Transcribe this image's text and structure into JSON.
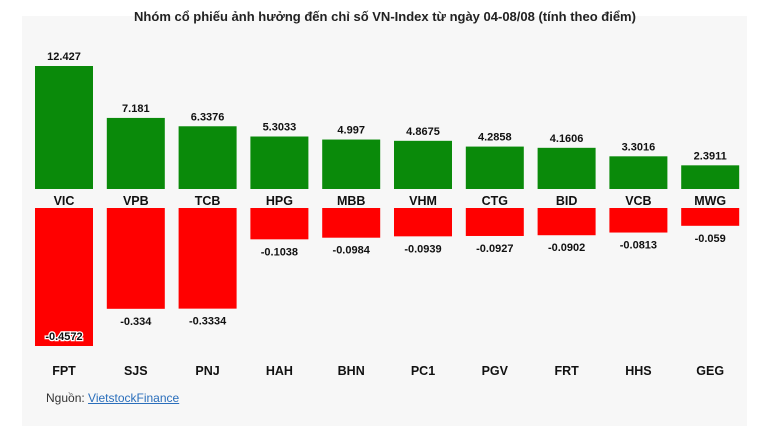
{
  "chart_data": {
    "type": "bar",
    "title": "Nhóm cổ phiếu ảnh hưởng đến chỉ số VN-Index từ ngày 04-08/08 (tính theo điểm)",
    "xlabel": "",
    "ylabel": "",
    "positive": {
      "categories": [
        "VIC",
        "VPB",
        "TCB",
        "HPG",
        "MBB",
        "VHM",
        "CTG",
        "BID",
        "VCB",
        "MWG"
      ],
      "values": [
        12.427,
        7.181,
        6.3376,
        5.3033,
        4.997,
        4.8675,
        4.2858,
        4.1606,
        3.3016,
        2.3911
      ],
      "labels": [
        "12.427",
        "7.181",
        "6.3376",
        "5.3033",
        "4.997",
        "4.8675",
        "4.2858",
        "4.1606",
        "3.3016",
        "2.3911"
      ],
      "color": "#0a8a0a"
    },
    "negative": {
      "categories": [
        "FPT",
        "SJS",
        "PNJ",
        "HAH",
        "BHN",
        "PC1",
        "PGV",
        "FRT",
        "HHS",
        "GEG"
      ],
      "values": [
        -0.4572,
        -0.334,
        -0.3334,
        -0.1038,
        -0.0984,
        -0.0939,
        -0.0927,
        -0.0902,
        -0.0813,
        -0.059
      ],
      "labels": [
        "-0.4572",
        "-0.334",
        "-0.3334",
        "-0.1038",
        "-0.0984",
        "-0.0939",
        "-0.0927",
        "-0.0902",
        "-0.0813",
        "-0.059"
      ],
      "color": "#ff0000"
    }
  },
  "footer": {
    "source_label": "Nguồn:",
    "source_link": "VietstockFinance"
  }
}
